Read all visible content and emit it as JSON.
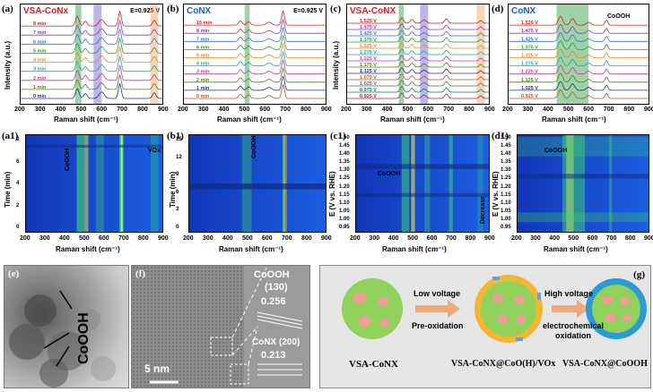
{
  "panel_a": {
    "label": "(a)",
    "title": "VSA-CoNx",
    "potential": "E=0.925 V",
    "xlabel": "Raman shift (cm⁻¹)",
    "ylabel": "Intensity (a.u.)",
    "series": [
      "8 min",
      "7 min",
      "6 min",
      "5 min",
      "4 min",
      "3 min",
      "2 min",
      "1 min",
      "0 min"
    ]
  },
  "panel_b": {
    "label": "(b)",
    "title": "CoNX",
    "potential": "E=0.925 V",
    "xlabel": "Raman shift (cm⁻¹)",
    "series": [
      "15 min",
      "8 min",
      "7 min",
      "6 min",
      "5 min",
      "4 min",
      "3 min",
      "2 min",
      "1 min",
      "0 min"
    ]
  },
  "panel_c": {
    "label": "(c)",
    "title": "VSA-CoNX",
    "xlabel": "Raman shift (cm⁻¹)",
    "ylabel": "Intensity (a.u.)",
    "series": [
      "1.525 V",
      "1.475 V",
      "1.425 V",
      "1.375 V",
      "1.325 V",
      "1.275 V",
      "1.225 V",
      "1.175 V",
      "1.125 V",
      "1.075 V",
      "1.025 V",
      "0.975 V",
      "0.925 V"
    ]
  },
  "panel_d": {
    "label": "(d)",
    "title": "CoNX",
    "annotation": "CoOOH",
    "xlabel": "Raman shift (cm⁻¹)",
    "series": [
      "1.525 V",
      "1.475 V",
      "1.425 V",
      "1.375 V",
      "1.325 V",
      "1.275 V",
      "1.225 V",
      "1.125 V",
      "1.025 V",
      "0.925 V"
    ]
  },
  "ticks_x": [
    "200",
    "300",
    "400",
    "500",
    "600",
    "700",
    "800",
    "900"
  ],
  "panel_a1": {
    "label": "(a1)",
    "xlabel": "Raman shift (cm⁻¹)",
    "ylabel": "Time (min)",
    "ann1": "CoOOH",
    "ann2": "VOx",
    "yticks": [
      "8",
      "6",
      "4",
      "2",
      "0"
    ]
  },
  "panel_b1": {
    "label": "(b1)",
    "xlabel": "Raman shift (cm⁻¹)",
    "ylabel": "Time (min)",
    "ann1": "CoOOH",
    "yticks": [
      "15",
      "12",
      "9",
      "6",
      "3",
      "0"
    ]
  },
  "panel_c1": {
    "label": "(c1)",
    "xlabel": "Raman shift (cm⁻¹)",
    "ylabel": "E (V vs. RHE)",
    "ann1": "CoOOH",
    "ann2": "Decrease",
    "yticks": [
      "1.50",
      "1.45",
      "1.40",
      "1.35",
      "1.30",
      "1.25",
      "1.20",
      "1.15",
      "1.10",
      "1.05",
      "1.00",
      "0.95"
    ]
  },
  "panel_d1": {
    "label": "(d1)",
    "xlabel": "Raman shift (cm⁻¹)",
    "ylabel": "E (V vs. RHE)",
    "ann1": "CoOOH",
    "yticks": [
      "1.50",
      "1.45",
      "1.40",
      "1.35",
      "1.30",
      "1.25",
      "1.20",
      "1.15",
      "1.10",
      "1.05",
      "1.00",
      "0.95"
    ]
  },
  "panel_e": {
    "label": "(e)",
    "ann": "CoOOH"
  },
  "panel_f": {
    "label": "(f)",
    "scale": "5 nm",
    "p1": "CoOOH",
    "p1b": "(130)",
    "p1v": "0.256",
    "p2": "CoNX (200)",
    "p2v": "0.213"
  },
  "panel_g": {
    "label": "(g)",
    "step1a": "Low voltage",
    "step1b": "Pre-oxidation",
    "step2a": "High voltage",
    "step2b": "electrochemical",
    "step2c": "oxidation",
    "s1": "VSA-CoNX",
    "s2": "VSA-CoNX@CoO(H)/VOx",
    "s3": "VSA-CoNX@CoOOH"
  },
  "colors": {
    "heat_bg": "#1847c9",
    "heat_green": "#3ddc6a",
    "heat_yellow": "#e8f04a",
    "heat_red": "#e0301c",
    "panel_g_bg": "#e6e6e6"
  }
}
